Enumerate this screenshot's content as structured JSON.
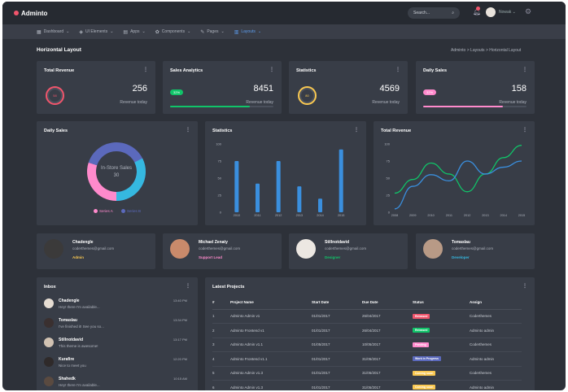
{
  "app": {
    "name": "Adminto"
  },
  "topbar": {
    "search_placeholder": "Search...",
    "user": "Nowak"
  },
  "nav": [
    {
      "label": "Dashboard",
      "icon": "dashboard-icon",
      "glyph": "▦",
      "active": false
    },
    {
      "label": "UI Elements",
      "icon": "ui-elements-icon",
      "glyph": "◈",
      "active": false
    },
    {
      "label": "Apps",
      "icon": "apps-icon",
      "glyph": "▤",
      "active": false
    },
    {
      "label": "Components",
      "icon": "components-icon",
      "glyph": "✿",
      "active": false
    },
    {
      "label": "Pages",
      "icon": "pages-icon",
      "glyph": "✎",
      "active": false
    },
    {
      "label": "Layouts",
      "icon": "layouts-icon",
      "glyph": "▥",
      "active": true
    }
  ],
  "page": {
    "title": "Horizontal Layout",
    "breadcrumb": "Adminto  >  Layouts  >  Horizontal Layout"
  },
  "stats": [
    {
      "title": "Total Revenue",
      "value": "256",
      "sub": "Revenue today",
      "kind": "ring",
      "ring_label": "58",
      "color": "#f1556c"
    },
    {
      "title": "Sales Analytics",
      "value": "8451",
      "sub": "Revenue today",
      "kind": "bar",
      "pill": "32%",
      "progress": 0.77,
      "color": "#10c469"
    },
    {
      "title": "Statistics",
      "value": "4569",
      "sub": "Revenue today",
      "kind": "ring",
      "ring_label": "80",
      "color": "#f9c851"
    },
    {
      "title": "Daily Sales",
      "value": "158",
      "sub": "Revenue today",
      "kind": "bar",
      "pill": "32%",
      "progress": 0.77,
      "color": "#ff8acc"
    }
  ],
  "charts": {
    "daily_sales": {
      "title": "Daily Sales",
      "center_label": "In-Store Sales",
      "center_value": "30",
      "legend": [
        "Series A",
        "Series B"
      ]
    },
    "statistics": {
      "title": "Statistics"
    },
    "total_revenue": {
      "title": "Total Revenue"
    }
  },
  "chart_data": [
    {
      "type": "pie",
      "title": "Daily Sales",
      "series": [
        {
          "name": "Series A",
          "values": [
            30
          ]
        },
        {
          "name": "Series B",
          "values": [
            70
          ]
        }
      ],
      "colors": [
        "#ff8acc",
        "#5b69bc"
      ]
    },
    {
      "type": "bar",
      "title": "Statistics",
      "categories": [
        "2010",
        "2011",
        "2012",
        "2013",
        "2014",
        "2015"
      ],
      "values": [
        75,
        42,
        75,
        38,
        20,
        92
      ],
      "ylim": [
        0,
        100
      ],
      "yticks": [
        0,
        25,
        50,
        75,
        100
      ],
      "color": "#3a8fde"
    },
    {
      "type": "line",
      "title": "Total Revenue",
      "categories": [
        "2008",
        "2009",
        "2010",
        "2011",
        "2012",
        "2013",
        "2014",
        "2015"
      ],
      "ylim": [
        0,
        100
      ],
      "yticks": [
        0,
        25,
        50,
        75,
        100
      ],
      "series": [
        {
          "values": [
            28,
            48,
            72,
            56,
            30,
            56,
            80,
            98
          ],
          "color": "#10c469"
        },
        {
          "values": [
            5,
            38,
            55,
            46,
            75,
            56,
            66,
            75
          ],
          "color": "#3a8fde"
        }
      ]
    }
  ],
  "users": [
    {
      "name": "Chadengle",
      "email": "coderthemes@gmail.com",
      "role": "Admin",
      "role_color": "#f9c851"
    },
    {
      "name": "Michael Zenaty",
      "email": "coderthemes@gmail.com",
      "role": "Support Lead",
      "role_color": "#ff8acc"
    },
    {
      "name": "Stillnotdavid",
      "email": "coderthemes@gmail.com",
      "role": "Designer",
      "role_color": "#10c469"
    },
    {
      "name": "Tomaslau",
      "email": "coderthemes@gmail.com",
      "role": "Developer",
      "role_color": "#35b8e0"
    }
  ],
  "inbox": {
    "title": "Inbox",
    "messages": [
      {
        "name": "Chadengle",
        "text": "Hey! there I'm available...",
        "time": "13:40 PM"
      },
      {
        "name": "Tomaslau",
        "text": "I've finished it! See you so...",
        "time": "13:34 PM"
      },
      {
        "name": "Stillnotdavid",
        "text": "This theme is awesome!",
        "time": "13:17 PM"
      },
      {
        "name": "Kurafire",
        "text": "Nice to meet you",
        "time": "12:20 PM"
      },
      {
        "name": "Shahedk",
        "text": "Hey! there I'm available...",
        "time": "10:15 AM"
      }
    ]
  },
  "projects": {
    "title": "Latest Projects",
    "headers": [
      "#",
      "Project Name",
      "Start Date",
      "Due Date",
      "Status",
      "Assign"
    ],
    "rows": [
      {
        "n": "1",
        "name": "Adminto Admin v1",
        "start": "01/01/2017",
        "due": "26/04/2017",
        "status": "Released",
        "status_color": "#f1556c",
        "assign": "Coderthemes"
      },
      {
        "n": "2",
        "name": "Adminto Frontend v1",
        "start": "01/01/2017",
        "due": "26/04/2017",
        "status": "Released",
        "status_color": "#10c469",
        "assign": "Adminto admin"
      },
      {
        "n": "3",
        "name": "Adminto Admin v1.1",
        "start": "01/05/2017",
        "due": "10/05/2017",
        "status": "Pending",
        "status_color": "#ff8acc",
        "assign": "Coderthemes"
      },
      {
        "n": "4",
        "name": "Adminto Frontend v1.1",
        "start": "01/01/2017",
        "due": "31/05/2017",
        "status": "Work in Progress",
        "status_color": "#5b69bc",
        "assign": "Adminto admin"
      },
      {
        "n": "5",
        "name": "Adminto Admin v1.3",
        "start": "01/01/2017",
        "due": "31/05/2017",
        "status": "Coming soon",
        "status_color": "#f9c851",
        "assign": "Coderthemes"
      },
      {
        "n": "6",
        "name": "Adminto Admin v1.3",
        "start": "01/01/2017",
        "due": "31/05/2017",
        "status": "Coming soon",
        "status_color": "#f9c851",
        "assign": "Adminto admin"
      }
    ]
  }
}
